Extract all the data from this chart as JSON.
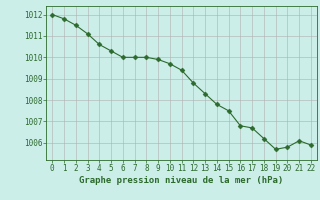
{
  "x": [
    0,
    1,
    2,
    3,
    4,
    5,
    6,
    7,
    8,
    9,
    10,
    11,
    12,
    13,
    14,
    15,
    16,
    17,
    18,
    19,
    20,
    21,
    22
  ],
  "y": [
    1012.0,
    1011.8,
    1011.5,
    1011.1,
    1010.6,
    1010.3,
    1010.0,
    1010.0,
    1010.0,
    1009.9,
    1009.7,
    1009.4,
    1008.8,
    1008.3,
    1007.8,
    1007.5,
    1006.8,
    1006.7,
    1006.2,
    1005.7,
    1005.8,
    1006.1,
    1005.9
  ],
  "line_color": "#2d6a2d",
  "marker_color": "#2d6a2d",
  "bg_color": "#cceee8",
  "grid_color": "#b0b0b0",
  "xlabel": "Graphe pression niveau de la mer (hPa)",
  "ylim": [
    1005.2,
    1012.4
  ],
  "xlim": [
    -0.5,
    22.5
  ],
  "yticks": [
    1006,
    1007,
    1008,
    1009,
    1010,
    1011,
    1012
  ],
  "xticks": [
    0,
    1,
    2,
    3,
    4,
    5,
    6,
    7,
    8,
    9,
    10,
    11,
    12,
    13,
    14,
    15,
    16,
    17,
    18,
    19,
    20,
    21,
    22
  ],
  "tick_fontsize": 5.5,
  "label_fontsize": 6.5,
  "marker_size": 2.5,
  "linewidth": 0.8
}
